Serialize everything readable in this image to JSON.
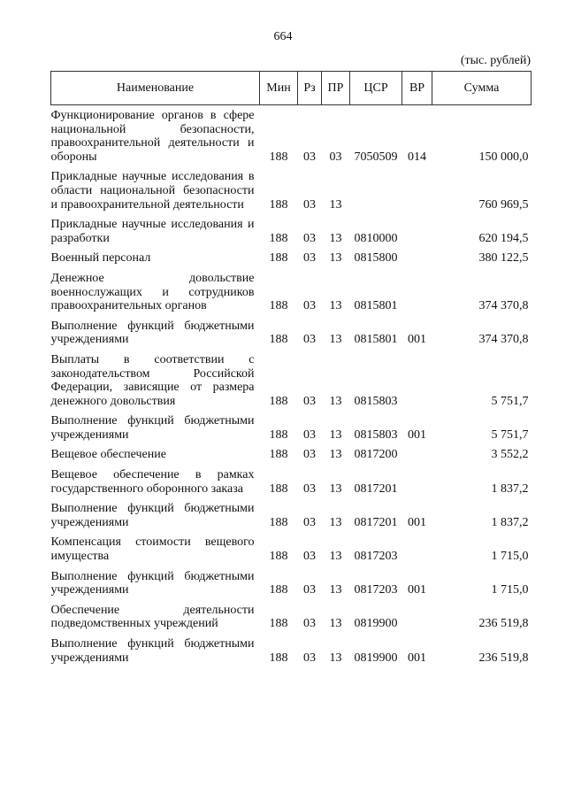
{
  "page_number": "664",
  "units": "(тыс. рублей)",
  "columns": [
    "Наименование",
    "Мин",
    "Рз",
    "ПР",
    "ЦСР",
    "ВР",
    "Сумма"
  ],
  "rows": [
    {
      "name": "Функционирование органов в сфере национальной безопасности, правоохранительной деятельности и обороны",
      "min": "188",
      "rz": "03",
      "pr": "03",
      "csr": "7050509",
      "vr": "014",
      "sum": "150 000,0"
    },
    {
      "name": "Прикладные научные исследования в области национальной безопасности и правоохранительной деятельности",
      "min": "188",
      "rz": "03",
      "pr": "13",
      "csr": "",
      "vr": "",
      "sum": "760 969,5"
    },
    {
      "name": "Прикладные научные исследования и разработки",
      "min": "188",
      "rz": "03",
      "pr": "13",
      "csr": "0810000",
      "vr": "",
      "sum": "620 194,5"
    },
    {
      "name": "Военный персонал",
      "min": "188",
      "rz": "03",
      "pr": "13",
      "csr": "0815800",
      "vr": "",
      "sum": "380 122,5"
    },
    {
      "name": "Денежное довольствие военнослужащих и сотрудников правоохранительных органов",
      "min": "188",
      "rz": "03",
      "pr": "13",
      "csr": "0815801",
      "vr": "",
      "sum": "374 370,8"
    },
    {
      "name": "Выполнение функций бюджетными учреждениями",
      "min": "188",
      "rz": "03",
      "pr": "13",
      "csr": "0815801",
      "vr": "001",
      "sum": "374 370,8"
    },
    {
      "name": "Выплаты в соответствии с законодательством Российской Федерации, зависящие от размера денежного довольствия",
      "min": "188",
      "rz": "03",
      "pr": "13",
      "csr": "0815803",
      "vr": "",
      "sum": "5 751,7"
    },
    {
      "name": "Выполнение функций бюджетными учреждениями",
      "min": "188",
      "rz": "03",
      "pr": "13",
      "csr": "0815803",
      "vr": "001",
      "sum": "5 751,7"
    },
    {
      "name": "Вещевое обеспечение",
      "min": "188",
      "rz": "03",
      "pr": "13",
      "csr": "0817200",
      "vr": "",
      "sum": "3 552,2"
    },
    {
      "name": "Вещевое обеспечение в рамках государственного оборонного заказа",
      "min": "188",
      "rz": "03",
      "pr": "13",
      "csr": "0817201",
      "vr": "",
      "sum": "1 837,2"
    },
    {
      "name": "Выполнение функций бюджетными учреждениями",
      "min": "188",
      "rz": "03",
      "pr": "13",
      "csr": "0817201",
      "vr": "001",
      "sum": "1 837,2"
    },
    {
      "name": "Компенсация стоимости вещевого имущества",
      "min": "188",
      "rz": "03",
      "pr": "13",
      "csr": "0817203",
      "vr": "",
      "sum": "1 715,0"
    },
    {
      "name": "Выполнение функций бюджетными учреждениями",
      "min": "188",
      "rz": "03",
      "pr": "13",
      "csr": "0817203",
      "vr": "001",
      "sum": "1 715,0"
    },
    {
      "name": "Обеспечение деятельности подведомственных учреждений",
      "min": "188",
      "rz": "03",
      "pr": "13",
      "csr": "0819900",
      "vr": "",
      "sum": "236 519,8"
    },
    {
      "name": "Выполнение функций бюджетными учреждениями",
      "min": "188",
      "rz": "03",
      "pr": "13",
      "csr": "0819900",
      "vr": "001",
      "sum": "236 519,8"
    }
  ]
}
